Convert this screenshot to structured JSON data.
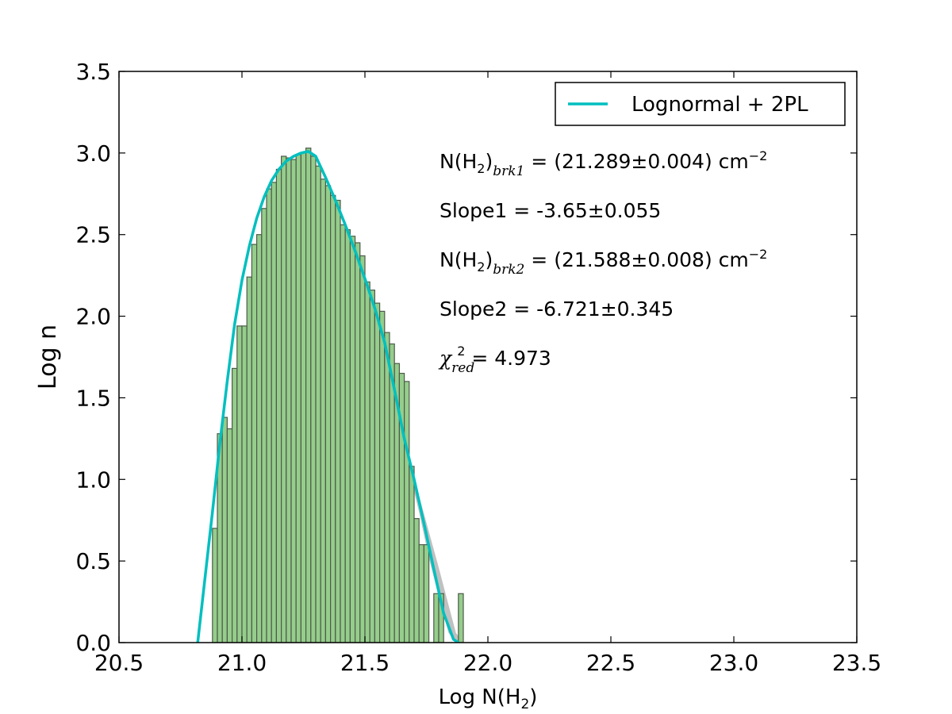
{
  "chart_data": {
    "type": "bar",
    "xlabel": {
      "prefix": "Log N(H",
      "sub": "2",
      "suffix": ")"
    },
    "ylabel": "Log n",
    "xlim": [
      20.5,
      23.5
    ],
    "ylim": [
      0,
      3.5
    ],
    "xticks": [
      "20.5",
      "21.0",
      "21.5",
      "22.0",
      "22.5",
      "23.0",
      "23.5"
    ],
    "yticks": [
      "0.0",
      "0.5",
      "1.0",
      "1.5",
      "2.0",
      "2.5",
      "3.0",
      "3.5"
    ],
    "grid": false,
    "legend_position": "top-right",
    "bin_width": 0.02,
    "bar_color": "#8fca85",
    "bar_edge_color": "#4e5a4b",
    "histogram": {
      "bin_left": [
        20.88,
        20.9,
        20.92,
        20.94,
        20.96,
        20.98,
        21.0,
        21.02,
        21.04,
        21.06,
        21.08,
        21.1,
        21.12,
        21.14,
        21.16,
        21.18,
        21.2,
        21.22,
        21.24,
        21.26,
        21.28,
        21.3,
        21.32,
        21.34,
        21.36,
        21.38,
        21.4,
        21.42,
        21.44,
        21.46,
        21.48,
        21.5,
        21.52,
        21.54,
        21.56,
        21.58,
        21.6,
        21.62,
        21.64,
        21.66,
        21.68,
        21.7,
        21.72,
        21.74,
        21.78,
        21.8,
        21.88
      ],
      "values": [
        0.7,
        1.28,
        1.38,
        1.31,
        1.68,
        1.94,
        1.94,
        2.24,
        2.44,
        2.5,
        2.66,
        2.78,
        2.82,
        2.9,
        2.98,
        2.97,
        2.96,
        2.99,
        3.0,
        3.03,
        2.98,
        2.92,
        2.84,
        2.8,
        2.74,
        2.71,
        2.56,
        2.53,
        2.49,
        2.45,
        2.37,
        2.21,
        2.16,
        2.08,
        2.03,
        1.9,
        1.83,
        1.71,
        1.65,
        1.6,
        1.08,
        0.76,
        0.6,
        0.6,
        0.3,
        0.3,
        0.3
      ]
    },
    "fit": {
      "name": "Lognormal + 2PL",
      "color": "#00bfbf",
      "x": [
        20.82,
        20.85,
        20.88,
        20.91,
        20.94,
        20.97,
        21.0,
        21.03,
        21.06,
        21.09,
        21.12,
        21.15,
        21.18,
        21.21,
        21.24,
        21.27,
        21.3,
        21.34,
        21.38,
        21.42,
        21.46,
        21.5,
        21.54,
        21.58,
        21.62,
        21.66,
        21.7,
        21.74,
        21.78,
        21.82,
        21.86,
        21.88
      ],
      "y": [
        0.0,
        0.4,
        0.8,
        1.22,
        1.6,
        1.95,
        2.22,
        2.43,
        2.6,
        2.73,
        2.83,
        2.9,
        2.95,
        2.98,
        3.0,
        3.01,
        2.98,
        2.85,
        2.71,
        2.56,
        2.4,
        2.23,
        2.05,
        1.84,
        1.55,
        1.25,
        1.0,
        0.73,
        0.45,
        0.18,
        0.02,
        -0.05
      ]
    },
    "fit_band": {
      "color": "#b5b5b5",
      "x": [
        21.68,
        21.72,
        21.76,
        21.8,
        21.84,
        21.87,
        21.9
      ],
      "upper": [
        1.12,
        0.9,
        0.68,
        0.46,
        0.23,
        0.06,
        -0.05
      ],
      "lower": [
        1.05,
        0.8,
        0.52,
        0.28,
        0.06,
        -0.05,
        -0.05
      ]
    },
    "annotations": [
      {
        "parts": [
          {
            "t": "N(H"
          },
          {
            "t": "2",
            "s": "sub"
          },
          {
            "t": ")"
          },
          {
            "t": "brk1",
            "s": "subit"
          },
          {
            "t": " = (21.289±0.004) cm"
          },
          {
            "t": "−2",
            "s": "sup"
          }
        ]
      },
      {
        "parts": [
          {
            "t": "Slope1 = -3.65±0.055"
          }
        ]
      },
      {
        "parts": [
          {
            "t": "N(H"
          },
          {
            "t": "2",
            "s": "sub"
          },
          {
            "t": ")"
          },
          {
            "t": "brk2",
            "s": "subit"
          },
          {
            "t": " = (21.588±0.008) cm"
          },
          {
            "t": "−2",
            "s": "sup"
          }
        ]
      },
      {
        "parts": [
          {
            "t": "Slope2 = -6.721±0.345"
          }
        ]
      },
      {
        "parts": [
          {
            "t": "χ",
            "s": "it"
          },
          {
            "t": "red",
            "s": "subit"
          },
          {
            "t": "2",
            "s": "supnb"
          },
          {
            "t": " = 4.973"
          }
        ]
      }
    ]
  }
}
